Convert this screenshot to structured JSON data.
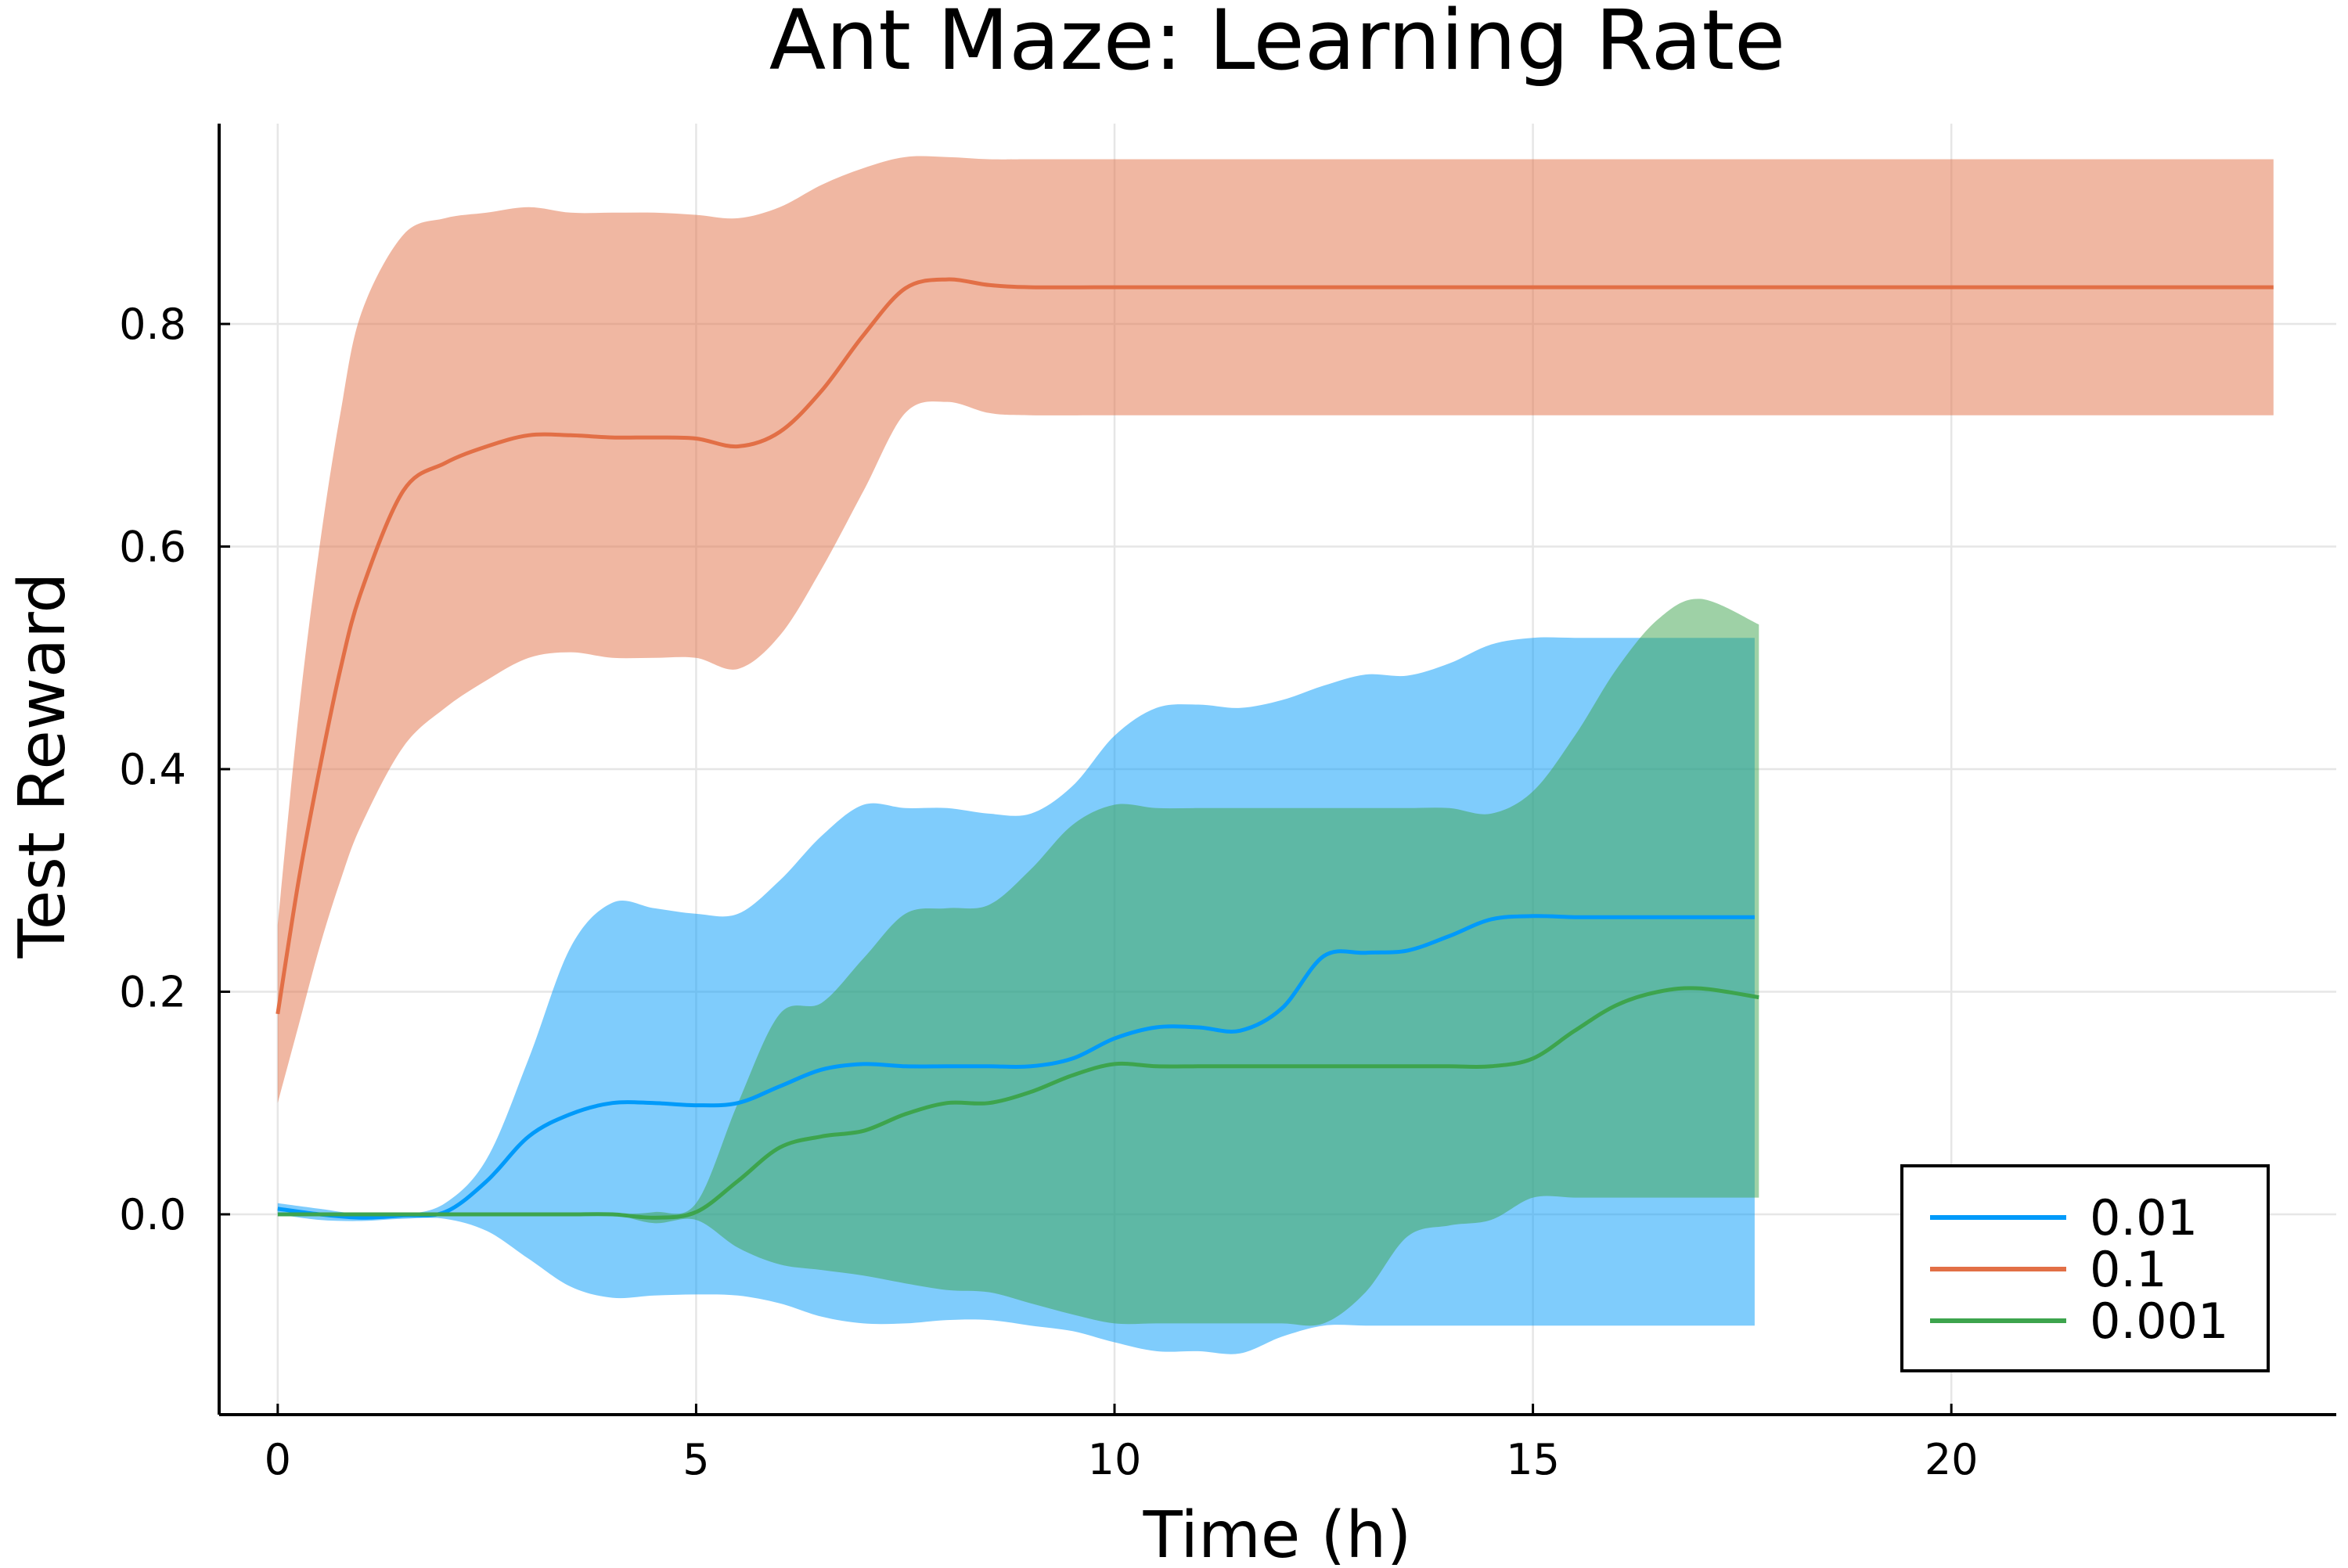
{
  "chart_data": {
    "type": "line",
    "title": "Ant Maze: Learning Rate",
    "xlabel": "Time (h)",
    "ylabel": "Test Reward",
    "xlim": [
      -0.7,
      24.6
    ],
    "ylim": [
      -0.18,
      0.98
    ],
    "xticks": [
      0,
      5,
      10,
      15,
      20
    ],
    "yticks": [
      0.0,
      0.2,
      0.4,
      0.6,
      0.8
    ],
    "xtick_labels": [
      "0",
      "5",
      "10",
      "15",
      "20"
    ],
    "ytick_labels": [
      "0.0",
      "0.2",
      "0.4",
      "0.6",
      "0.8"
    ],
    "grid": true,
    "legend_position": "bottom-right",
    "series": [
      {
        "name": "0.01",
        "color": "#009AFA",
        "band_opacity": 0.5,
        "x": [
          0,
          0.5,
          1,
          1.5,
          2,
          2.5,
          3,
          3.5,
          4,
          4.5,
          5,
          5.5,
          6,
          6.5,
          7,
          7.5,
          8,
          8.5,
          9,
          9.5,
          10,
          10.5,
          11,
          11.5,
          12,
          12.5,
          13,
          13.5,
          14,
          14.5,
          15,
          15.5,
          16,
          16.5,
          17,
          17.65
        ],
        "mean": [
          0.005,
          0.0,
          -0.003,
          -0.001,
          0.002,
          0.03,
          0.07,
          0.09,
          0.1,
          0.1,
          0.098,
          0.1,
          0.115,
          0.13,
          0.135,
          0.133,
          0.133,
          0.133,
          0.133,
          0.14,
          0.158,
          0.168,
          0.168,
          0.165,
          0.185,
          0.232,
          0.235,
          0.237,
          0.25,
          0.265,
          0.268,
          0.267,
          0.267,
          0.267,
          0.267,
          0.267
        ],
        "upper": [
          0.01,
          0.005,
          0.0,
          0.0,
          0.01,
          0.05,
          0.14,
          0.24,
          0.28,
          0.275,
          0.27,
          0.27,
          0.3,
          0.34,
          0.368,
          0.365,
          0.365,
          0.36,
          0.36,
          0.385,
          0.43,
          0.455,
          0.458,
          0.455,
          0.462,
          0.475,
          0.485,
          0.484,
          0.495,
          0.512,
          0.518,
          0.518,
          0.518,
          0.518,
          0.518,
          0.518
        ],
        "lower": [
          0.0,
          -0.005,
          -0.006,
          -0.004,
          -0.004,
          -0.015,
          -0.04,
          -0.065,
          -0.075,
          -0.073,
          -0.072,
          -0.073,
          -0.08,
          -0.092,
          -0.098,
          -0.098,
          -0.095,
          -0.095,
          -0.1,
          -0.105,
          -0.115,
          -0.123,
          -0.123,
          -0.125,
          -0.11,
          -0.1,
          -0.1,
          -0.1,
          -0.1,
          -0.1,
          -0.1,
          -0.1,
          -0.1,
          -0.1,
          -0.1,
          -0.1
        ]
      },
      {
        "name": "0.1",
        "color": "#E26F46",
        "band_opacity": 0.5,
        "x": [
          0,
          0.25,
          0.5,
          0.75,
          1,
          1.5,
          2,
          2.5,
          3,
          3.5,
          4,
          4.5,
          5,
          5.5,
          6,
          6.5,
          7,
          7.5,
          8,
          8.5,
          9,
          10,
          12,
          14,
          16,
          18,
          20,
          22,
          23.85
        ],
        "mean": [
          0.18,
          0.3,
          0.4,
          0.49,
          0.56,
          0.65,
          0.675,
          0.69,
          0.7,
          0.7,
          0.698,
          0.698,
          0.697,
          0.69,
          0.703,
          0.74,
          0.79,
          0.832,
          0.84,
          0.835,
          0.833,
          0.833,
          0.833,
          0.833,
          0.833,
          0.833,
          0.833,
          0.833,
          0.833
        ],
        "upper": [
          0.26,
          0.45,
          0.6,
          0.72,
          0.81,
          0.88,
          0.895,
          0.9,
          0.905,
          0.9,
          0.9,
          0.9,
          0.898,
          0.895,
          0.905,
          0.925,
          0.94,
          0.95,
          0.95,
          0.948,
          0.948,
          0.948,
          0.948,
          0.948,
          0.948,
          0.948,
          0.948,
          0.948,
          0.948
        ],
        "lower": [
          0.1,
          0.17,
          0.24,
          0.3,
          0.35,
          0.42,
          0.455,
          0.48,
          0.5,
          0.505,
          0.5,
          0.5,
          0.5,
          0.49,
          0.52,
          0.58,
          0.65,
          0.72,
          0.73,
          0.72,
          0.718,
          0.718,
          0.718,
          0.718,
          0.718,
          0.718,
          0.718,
          0.718,
          0.718
        ]
      },
      {
        "name": "0.001",
        "color": "#3DA44D",
        "band_opacity": 0.5,
        "x": [
          0,
          0.5,
          1,
          1.5,
          2,
          2.5,
          3,
          3.5,
          4,
          4.5,
          5,
          5.5,
          6,
          6.5,
          7,
          7.5,
          8,
          8.5,
          9,
          9.5,
          10,
          10.5,
          11,
          11.5,
          12,
          12.5,
          13,
          13.5,
          14,
          14.5,
          15,
          15.5,
          16,
          16.5,
          17,
          17.7
        ],
        "mean": [
          0.0,
          0.0,
          0.0,
          0.0,
          0.0,
          0.0,
          0.0,
          0.0,
          0.0,
          -0.003,
          0.002,
          0.03,
          0.06,
          0.07,
          0.075,
          0.09,
          0.1,
          0.1,
          0.11,
          0.125,
          0.135,
          0.133,
          0.133,
          0.133,
          0.133,
          0.133,
          0.133,
          0.133,
          0.133,
          0.133,
          0.14,
          0.165,
          0.188,
          0.2,
          0.203,
          0.195
        ],
        "upper": [
          0.0,
          0.0,
          0.0,
          0.0,
          0.0,
          0.0,
          0.0,
          0.0,
          0.0,
          0.002,
          0.01,
          0.1,
          0.18,
          0.19,
          0.23,
          0.27,
          0.275,
          0.278,
          0.31,
          0.35,
          0.368,
          0.365,
          0.365,
          0.365,
          0.365,
          0.365,
          0.365,
          0.365,
          0.365,
          0.36,
          0.38,
          0.43,
          0.49,
          0.535,
          0.553,
          0.53
        ],
        "lower": [
          0.0,
          0.0,
          0.0,
          0.0,
          0.0,
          0.0,
          0.0,
          0.0,
          0.0,
          -0.008,
          -0.005,
          -0.03,
          -0.045,
          -0.05,
          -0.055,
          -0.062,
          -0.068,
          -0.07,
          -0.08,
          -0.09,
          -0.098,
          -0.098,
          -0.098,
          -0.098,
          -0.098,
          -0.098,
          -0.07,
          -0.02,
          -0.01,
          -0.005,
          0.015,
          0.015,
          0.015,
          0.015,
          0.015,
          0.015
        ]
      }
    ]
  }
}
